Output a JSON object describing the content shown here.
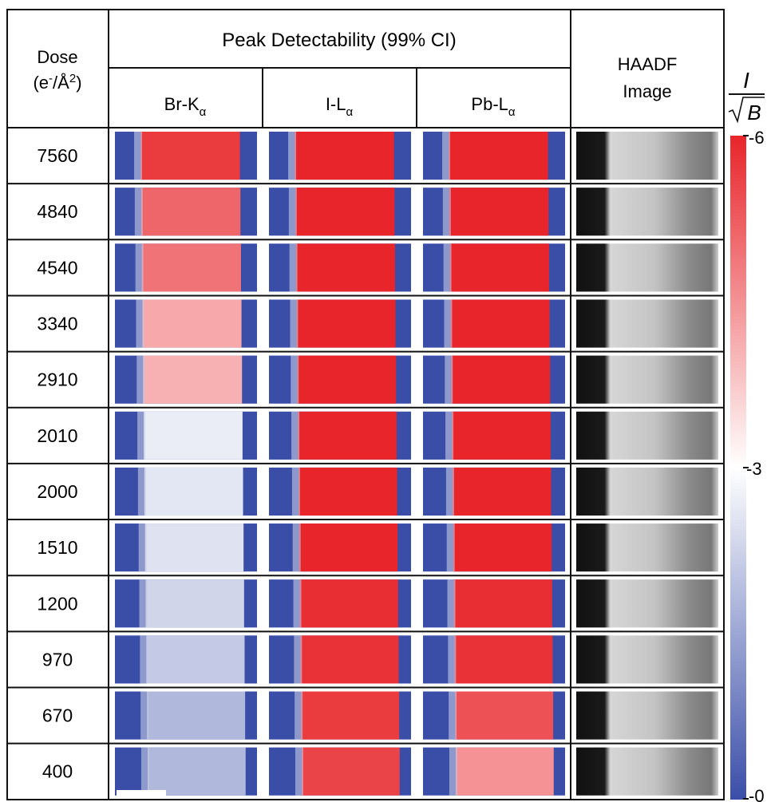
{
  "headers": {
    "dose_line1": "Dose",
    "dose_line2_pre": "(e",
    "dose_line2_sup": "-",
    "dose_line2_mid": "/Å",
    "dose_line2_sup2": "2",
    "dose_line2_post": ")",
    "group_title": "Peak Detectability (99% CI)",
    "haadf_line1": "HAADF",
    "haadf_line2": "Image",
    "columns": [
      {
        "main": "Br-K",
        "sub": "α"
      },
      {
        "main": "I-L",
        "sub": "α"
      },
      {
        "main": "Pb-L",
        "sub": "α"
      }
    ]
  },
  "colorbar": {
    "label_numerator": "I",
    "label_denominator": "B",
    "tick_top": "6",
    "tick_mid": "3",
    "tick_bottom": "0",
    "max": 6,
    "min": 0,
    "high_color": "#e8252a",
    "mid_color": "#ffffff",
    "low_color": "#3a4ea8"
  },
  "palette": {
    "blue": "#3a4ea8",
    "red": "#e8252a",
    "black": "#111111"
  },
  "rows": [
    {
      "dose": "7560",
      "br": 0.95,
      "i": 1.0,
      "pb": 1.0
    },
    {
      "dose": "4840",
      "br": 0.85,
      "i": 1.0,
      "pb": 1.0
    },
    {
      "dose": "4540",
      "br": 0.82,
      "i": 1.0,
      "pb": 1.0
    },
    {
      "dose": "3340",
      "br": 0.7,
      "i": 1.0,
      "pb": 1.0
    },
    {
      "dose": "2910",
      "br": 0.68,
      "i": 1.0,
      "pb": 1.0
    },
    {
      "dose": "2010",
      "br": 0.45,
      "i": 1.0,
      "pb": 1.0
    },
    {
      "dose": "2000",
      "br": 0.43,
      "i": 1.0,
      "pb": 1.0
    },
    {
      "dose": "1510",
      "br": 0.42,
      "i": 1.0,
      "pb": 1.0
    },
    {
      "dose": "1200",
      "br": 0.38,
      "i": 0.98,
      "pb": 0.98
    },
    {
      "dose": "970",
      "br": 0.35,
      "i": 0.97,
      "pb": 0.97
    },
    {
      "dose": "670",
      "br": 0.3,
      "i": 0.95,
      "pb": 0.9
    },
    {
      "dose": "400",
      "br": 0.3,
      "i": 0.93,
      "pb": 0.75
    }
  ]
}
